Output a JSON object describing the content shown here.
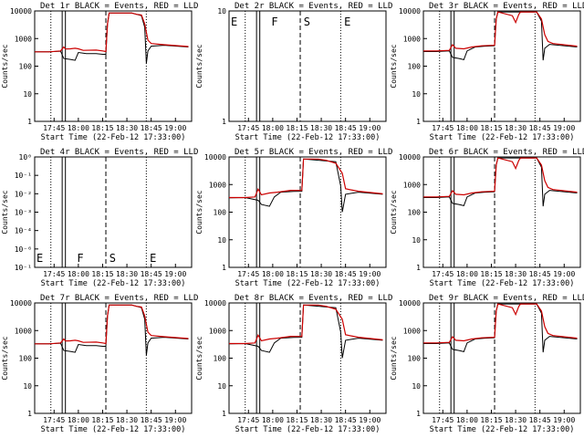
{
  "figure": {
    "xlabel": "Start Time (22-Feb-12 17:33:00)",
    "ylabel": "Counts/sec",
    "series_legend": {
      "black": "Events",
      "red": "LLD"
    },
    "colors": {
      "events": "#000000",
      "lld": "#cc0000",
      "axes": "#000000"
    }
  },
  "chart_data": [
    {
      "title": "Det 1r BLACK = Events, RED = LLD",
      "type": "line",
      "yscale": "log",
      "ytick_labels": [
        "1",
        "10",
        "100",
        "1000",
        "10000"
      ],
      "has_data": true,
      "profile": "a"
    },
    {
      "title": "Det 2r BLACK = Events, RED = LLD",
      "type": "line",
      "yscale": "log",
      "ytick_labels": [
        "1",
        "10"
      ],
      "has_data": false,
      "profile": "none"
    },
    {
      "title": "Det 3r BLACK = Events, RED = LLD",
      "type": "line",
      "yscale": "log",
      "ytick_labels": [
        "1",
        "10",
        "100",
        "1000",
        "10000"
      ],
      "has_data": true,
      "profile": "b"
    },
    {
      "title": "Det 4r BLACK = Events, RED = LLD",
      "type": "line",
      "yscale": "log",
      "ytick_labels": [
        "10⁻¹",
        "10⁻⁶",
        "10⁻⁴",
        "10⁻³",
        "10⁻²",
        "10⁻¹",
        "10⁰"
      ],
      "has_data": false,
      "profile": "none"
    },
    {
      "title": "Det 5r BLACK = Events, RED = LLD",
      "type": "line",
      "yscale": "log",
      "ytick_labels": [
        "1",
        "10",
        "100",
        "1000",
        "10000"
      ],
      "has_data": true,
      "profile": "c"
    },
    {
      "title": "Det 6r BLACK = Events, RED = LLD",
      "type": "line",
      "yscale": "log",
      "ytick_labels": [
        "1",
        "10",
        "100",
        "1000",
        "10000"
      ],
      "has_data": true,
      "profile": "b"
    },
    {
      "title": "Det 7r BLACK = Events, RED = LLD",
      "type": "line",
      "yscale": "log",
      "ytick_labels": [
        "1",
        "10",
        "100",
        "1000",
        "10000"
      ],
      "has_data": true,
      "profile": "a"
    },
    {
      "title": "Det 8r BLACK = Events, RED = LLD",
      "type": "line",
      "yscale": "log",
      "ytick_labels": [
        "1",
        "10",
        "100",
        "1000",
        "10000"
      ],
      "has_data": true,
      "profile": "c"
    },
    {
      "title": "Det 9r BLACK = Events, RED = LLD",
      "type": "line",
      "yscale": "log",
      "ytick_labels": [
        "1",
        "10",
        "100",
        "1000",
        "10000"
      ],
      "has_data": true,
      "profile": "b"
    }
  ],
  "time_axis": {
    "tick_labels": [
      "17:45",
      "18:00",
      "18:15",
      "18:30",
      "18:45",
      "19:00"
    ],
    "range_minutes": [
      0,
      97
    ]
  },
  "markers": {
    "labels": [
      "E",
      "F",
      "S",
      "E"
    ],
    "minutes": [
      0,
      25,
      45,
      70
    ]
  },
  "profiles": {
    "a": {
      "lld": [
        [
          0,
          370
        ],
        [
          9,
          370
        ],
        [
          16,
          400
        ],
        [
          18,
          560
        ],
        [
          19,
          470
        ],
        [
          22,
          480
        ],
        [
          25,
          500
        ],
        [
          27,
          480
        ],
        [
          30,
          420
        ],
        [
          38,
          430
        ],
        [
          42,
          400
        ],
        [
          44,
          380
        ],
        [
          45,
          4000
        ],
        [
          46,
          10000
        ],
        [
          60,
          10000
        ],
        [
          63,
          9000
        ],
        [
          66,
          8500
        ],
        [
          68,
          4000
        ],
        [
          70,
          1000
        ],
        [
          72,
          750
        ],
        [
          80,
          680
        ],
        [
          95,
          580
        ]
      ],
      "events": [
        [
          0,
          370
        ],
        [
          9,
          370
        ],
        [
          16,
          390
        ],
        [
          18,
          210
        ],
        [
          22,
          195
        ],
        [
          25,
          180
        ],
        [
          27,
          350
        ],
        [
          32,
          320
        ],
        [
          38,
          320
        ],
        [
          42,
          300
        ],
        [
          44,
          300
        ],
        [
          45,
          4000
        ],
        [
          46,
          10000
        ],
        [
          60,
          10000
        ],
        [
          66,
          8000
        ],
        [
          68,
          3000
        ],
        [
          69,
          140
        ],
        [
          70,
          400
        ],
        [
          72,
          600
        ],
        [
          80,
          650
        ],
        [
          95,
          560
        ]
      ]
    },
    "b": {
      "lld": [
        [
          0,
          400
        ],
        [
          8,
          400
        ],
        [
          16,
          420
        ],
        [
          18,
          680
        ],
        [
          20,
          500
        ],
        [
          25,
          480
        ],
        [
          30,
          560
        ],
        [
          36,
          620
        ],
        [
          44,
          650
        ],
        [
          45,
          6000
        ],
        [
          46,
          11000
        ],
        [
          55,
          8000
        ],
        [
          57,
          4500
        ],
        [
          59,
          9000
        ],
        [
          60,
          11000
        ],
        [
          70,
          11000
        ],
        [
          73,
          6000
        ],
        [
          75,
          1600
        ],
        [
          77,
          900
        ],
        [
          80,
          750
        ],
        [
          95,
          600
        ]
      ],
      "events": [
        [
          0,
          380
        ],
        [
          8,
          380
        ],
        [
          16,
          400
        ],
        [
          18,
          230
        ],
        [
          22,
          210
        ],
        [
          25,
          190
        ],
        [
          27,
          400
        ],
        [
          32,
          560
        ],
        [
          38,
          600
        ],
        [
          44,
          620
        ],
        [
          45,
          6000
        ],
        [
          46,
          11000
        ],
        [
          70,
          11000
        ],
        [
          73,
          5000
        ],
        [
          74,
          180
        ],
        [
          75,
          500
        ],
        [
          78,
          700
        ],
        [
          95,
          560
        ]
      ]
    },
    "c": {
      "lld": [
        [
          0,
          380
        ],
        [
          10,
          380
        ],
        [
          16,
          400
        ],
        [
          18,
          780
        ],
        [
          20,
          480
        ],
        [
          25,
          560
        ],
        [
          30,
          600
        ],
        [
          38,
          700
        ],
        [
          45,
          700
        ],
        [
          46,
          10000
        ],
        [
          55,
          10000
        ],
        [
          60,
          9000
        ],
        [
          66,
          7000
        ],
        [
          70,
          3000
        ],
        [
          72,
          800
        ],
        [
          80,
          650
        ],
        [
          95,
          520
        ]
      ],
      "events": [
        [
          0,
          370
        ],
        [
          10,
          380
        ],
        [
          18,
          300
        ],
        [
          20,
          210
        ],
        [
          25,
          180
        ],
        [
          28,
          400
        ],
        [
          32,
          600
        ],
        [
          40,
          640
        ],
        [
          45,
          650
        ],
        [
          46,
          10000
        ],
        [
          66,
          8000
        ],
        [
          69,
          1000
        ],
        [
          70,
          110
        ],
        [
          72,
          500
        ],
        [
          80,
          600
        ],
        [
          95,
          500
        ]
      ]
    }
  }
}
